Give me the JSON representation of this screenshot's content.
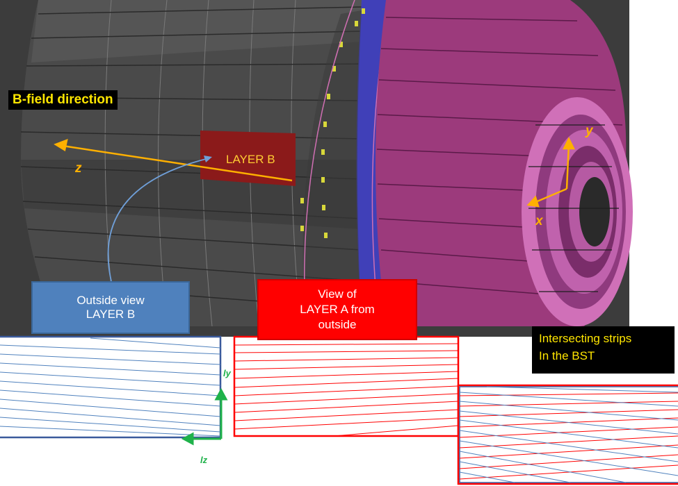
{
  "labels": {
    "b_field": "B-field direction",
    "layer_b": "LAYER B",
    "outside_view": [
      "Outside view",
      "LAYER B"
    ],
    "view_layer_a": [
      "View of",
      "LAYER A from",
      "outside"
    ],
    "intersecting": [
      "Intersecting strips",
      "In the BST"
    ]
  },
  "axes": {
    "global": {
      "z": "z",
      "x": "x",
      "y": "y"
    },
    "local": {
      "ly": "ly",
      "lz": "lz"
    }
  },
  "colors": {
    "background_3d": "#3c3c3c",
    "layer_outer": "#9c3a7c",
    "layer_inner_blue": "#3535c8",
    "layer_b_patch": "#8b1a1a",
    "strip_blue": "#4f81bd",
    "strip_red": "#ff0000",
    "axis_orange": "#ffb000",
    "local_axis_green": "#1fb24a"
  }
}
